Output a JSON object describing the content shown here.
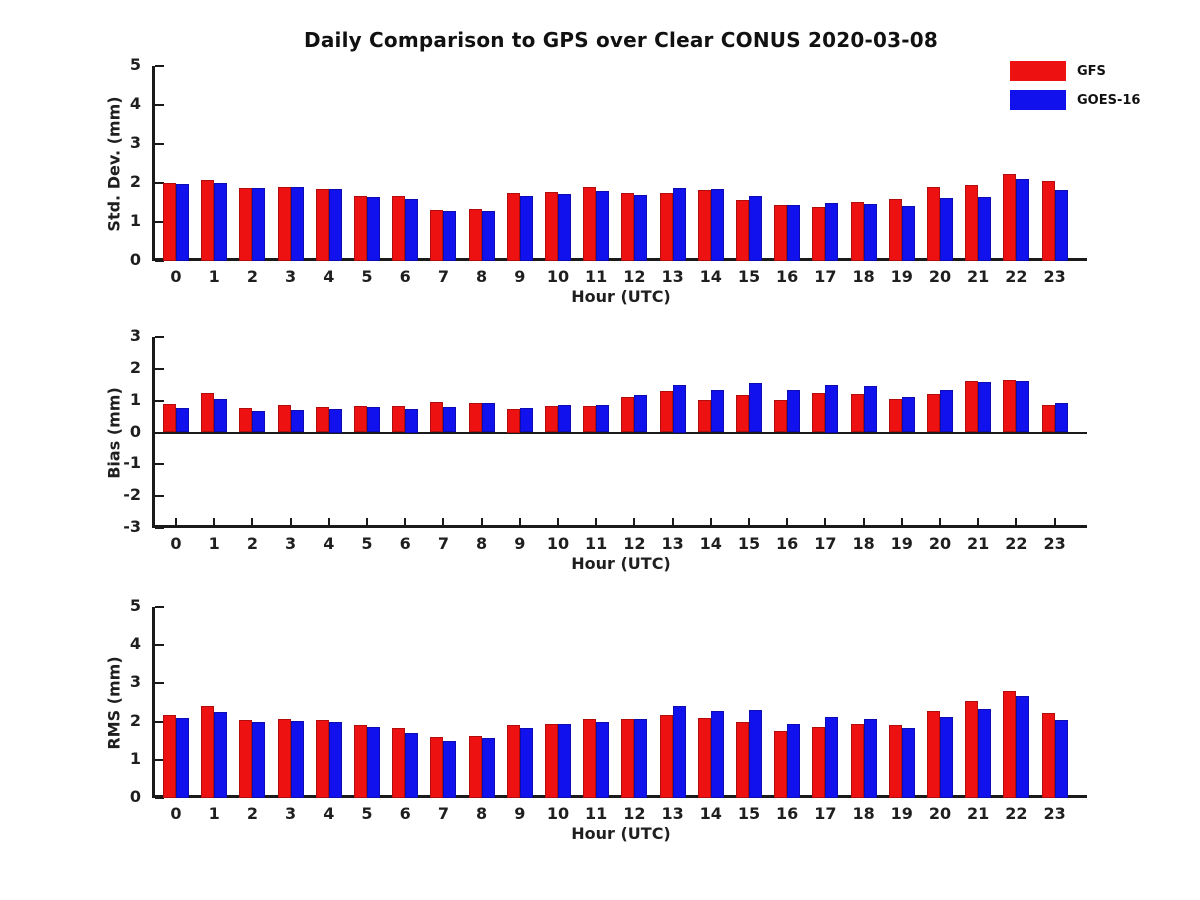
{
  "title": "Daily Comparison to GPS over Clear CONUS 2020-03-08",
  "legend": {
    "position": "top-right",
    "items": [
      {
        "label": "GFS",
        "color": "#ee1111"
      },
      {
        "label": "GOES-16",
        "color": "#1111ee"
      }
    ]
  },
  "colors": {
    "gfs_red": "#ee1111",
    "goes_blue": "#1111ee",
    "axis": "#1a1a1a",
    "text": "#1f1f1f"
  },
  "chart_data": [
    {
      "type": "bar",
      "ylabel": "Std. Dev. (mm)",
      "xlabel": "Hour (UTC)",
      "ylim": [
        0,
        5
      ],
      "yticks": [
        0,
        1,
        2,
        3,
        4,
        5
      ],
      "grid": false,
      "categories": [
        "0",
        "1",
        "2",
        "3",
        "4",
        "5",
        "6",
        "7",
        "8",
        "9",
        "10",
        "11",
        "12",
        "13",
        "14",
        "15",
        "16",
        "17",
        "18",
        "19",
        "20",
        "21",
        "22",
        "23"
      ],
      "series": [
        {
          "name": "GFS",
          "color": "#ee1111",
          "values": [
            2.0,
            2.08,
            1.88,
            1.9,
            1.85,
            1.67,
            1.67,
            1.3,
            1.33,
            1.74,
            1.76,
            1.9,
            1.74,
            1.75,
            1.83,
            1.57,
            1.44,
            1.38,
            1.52,
            1.58,
            1.9,
            1.95,
            2.23,
            2.05
          ]
        },
        {
          "name": "GOES-16",
          "color": "#1111ee",
          "values": [
            1.97,
            2.0,
            1.88,
            1.9,
            1.84,
            1.64,
            1.58,
            1.28,
            1.28,
            1.67,
            1.72,
            1.8,
            1.68,
            1.88,
            1.84,
            1.67,
            1.44,
            1.5,
            1.46,
            1.41,
            1.62,
            1.63,
            2.09,
            1.83
          ]
        }
      ]
    },
    {
      "type": "bar",
      "ylabel": "Bias (mm)",
      "xlabel": "Hour (UTC)",
      "ylim": [
        -3,
        3
      ],
      "yticks": [
        -3,
        -2,
        -1,
        0,
        1,
        2,
        3
      ],
      "grid": false,
      "categories": [
        "0",
        "1",
        "2",
        "3",
        "4",
        "5",
        "6",
        "7",
        "8",
        "9",
        "10",
        "11",
        "12",
        "13",
        "14",
        "15",
        "16",
        "17",
        "18",
        "19",
        "20",
        "21",
        "22",
        "23"
      ],
      "series": [
        {
          "name": "GFS",
          "color": "#ee1111",
          "values": [
            0.88,
            1.25,
            0.78,
            0.85,
            0.8,
            0.82,
            0.82,
            0.95,
            0.92,
            0.75,
            0.82,
            0.82,
            1.1,
            1.3,
            1.02,
            1.18,
            1.02,
            1.25,
            1.22,
            1.05,
            1.22,
            1.63,
            1.66,
            0.85
          ]
        },
        {
          "name": "GOES-16",
          "color": "#1111ee",
          "values": [
            0.78,
            1.05,
            0.68,
            0.72,
            0.75,
            0.8,
            0.75,
            0.8,
            0.92,
            0.78,
            0.85,
            0.85,
            1.17,
            1.5,
            1.35,
            1.55,
            1.35,
            1.5,
            1.47,
            1.12,
            1.33,
            1.6,
            1.63,
            0.92
          ]
        }
      ]
    },
    {
      "type": "bar",
      "ylabel": "RMS (mm)",
      "xlabel": "Hour (UTC)",
      "ylim": [
        0,
        5
      ],
      "yticks": [
        0,
        1,
        2,
        3,
        4,
        5
      ],
      "grid": false,
      "categories": [
        "0",
        "1",
        "2",
        "3",
        "4",
        "5",
        "6",
        "7",
        "8",
        "9",
        "10",
        "11",
        "12",
        "13",
        "14",
        "15",
        "16",
        "17",
        "18",
        "19",
        "20",
        "21",
        "22",
        "23"
      ],
      "series": [
        {
          "name": "GFS",
          "color": "#ee1111",
          "values": [
            2.17,
            2.4,
            2.05,
            2.07,
            2.04,
            1.9,
            1.84,
            1.6,
            1.62,
            1.9,
            1.95,
            2.07,
            2.07,
            2.17,
            2.1,
            2.0,
            1.75,
            1.86,
            1.93,
            1.9,
            2.28,
            2.55,
            2.8,
            2.23
          ]
        },
        {
          "name": "GOES-16",
          "color": "#1111ee",
          "values": [
            2.1,
            2.25,
            2.0,
            2.02,
            2.0,
            1.86,
            1.7,
            1.5,
            1.57,
            1.84,
            1.95,
            1.98,
            2.07,
            2.41,
            2.28,
            2.3,
            1.95,
            2.12,
            2.06,
            1.83,
            2.12,
            2.33,
            2.67,
            2.05
          ]
        }
      ]
    }
  ]
}
